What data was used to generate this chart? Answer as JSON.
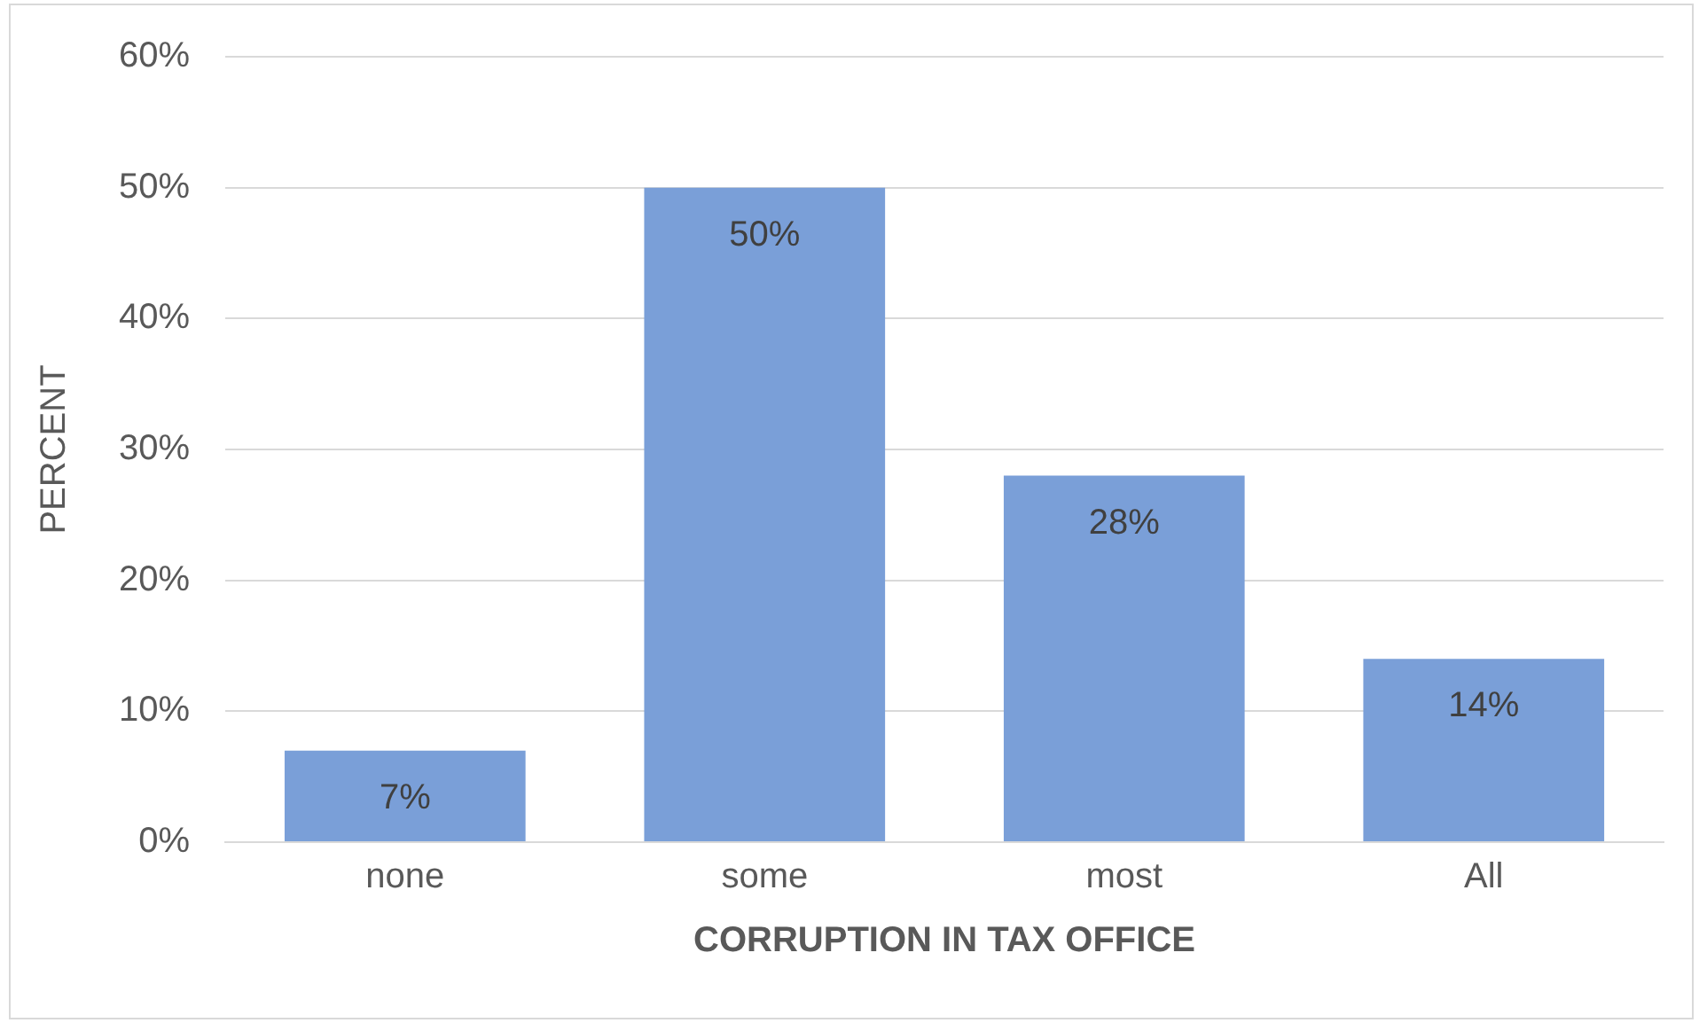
{
  "chart_data": {
    "type": "bar",
    "xlabel": "CORRUPTION IN TAX OFFICE",
    "ylabel": "PERCENT",
    "categories": [
      "none",
      "some",
      "most",
      "All"
    ],
    "values": [
      7,
      50,
      28,
      14
    ],
    "value_labels": [
      "7%",
      "50%",
      "28%",
      "14%"
    ],
    "color": "#7a9fd8",
    "ylim": [
      0,
      60
    ],
    "yticks": [
      {
        "value": 0,
        "label": "0%"
      },
      {
        "value": 10,
        "label": "10%"
      },
      {
        "value": 20,
        "label": "20%"
      },
      {
        "value": 30,
        "label": "30%"
      },
      {
        "value": 40,
        "label": "40%"
      },
      {
        "value": 50,
        "label": "50%"
      },
      {
        "value": 60,
        "label": "60%"
      }
    ],
    "grid": "y",
    "legend": false
  }
}
